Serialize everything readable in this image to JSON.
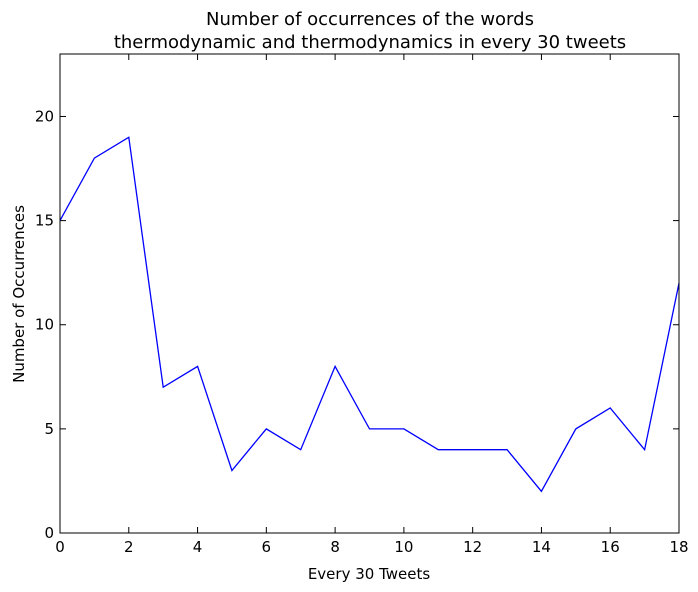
{
  "chart_data": {
    "type": "line",
    "title_lines": [
      "Number of occurrences of the words",
      "thermodynamic and thermodynamics in every 30 tweets"
    ],
    "xlabel": "Every 30 Tweets",
    "ylabel": "Number of Occurrences",
    "xlim": [
      0,
      18
    ],
    "ylim": [
      0,
      23
    ],
    "x_ticks": [
      0,
      2,
      4,
      6,
      8,
      10,
      12,
      14,
      16,
      18
    ],
    "y_ticks": [
      0,
      5,
      10,
      15,
      20
    ],
    "grid": false,
    "legend": "none",
    "color": "#0000ff",
    "x": [
      0,
      1,
      2,
      3,
      4,
      5,
      6,
      7,
      8,
      9,
      10,
      11,
      12,
      13,
      14,
      15,
      16,
      17,
      18
    ],
    "values": [
      15,
      18,
      19,
      7,
      8,
      3,
      5,
      4,
      8,
      5,
      5,
      4,
      4,
      4,
      2,
      5,
      6,
      4,
      12
    ]
  }
}
